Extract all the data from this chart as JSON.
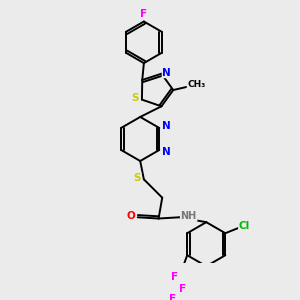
{
  "background_color": "#ebebeb",
  "bond_color": "#000000",
  "atom_colors": {
    "F": "#ff00ff",
    "S": "#cccc00",
    "N": "#0000ff",
    "O": "#ff0000",
    "Cl": "#00bb00",
    "H": "#777777",
    "C": "#000000"
  },
  "figsize": [
    3.0,
    3.0
  ],
  "dpi": 100
}
